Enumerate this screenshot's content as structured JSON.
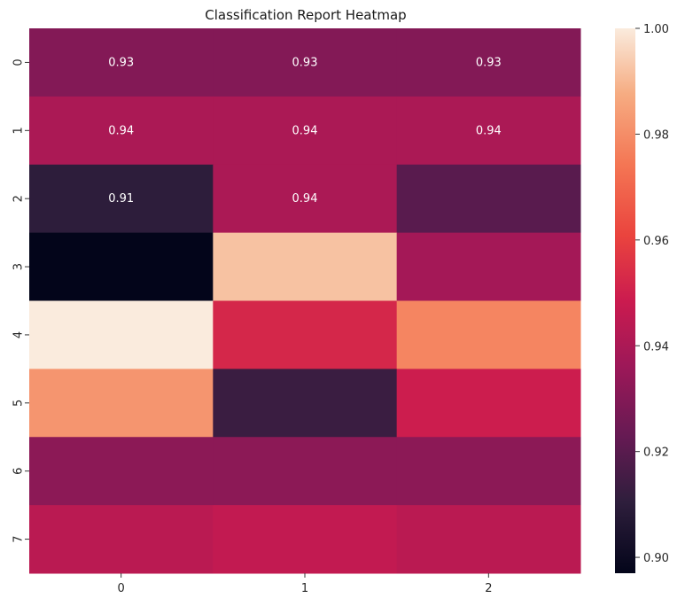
{
  "chart_data": {
    "type": "heatmap",
    "title": "Classification Report Heatmap",
    "xlabel": "",
    "ylabel": "",
    "x_categories": [
      "0",
      "1",
      "2"
    ],
    "y_categories": [
      "0",
      "1",
      "2",
      "3",
      "4",
      "5",
      "6",
      "7"
    ],
    "values": [
      [
        0.93,
        0.93,
        0.93
      ],
      [
        0.94,
        0.94,
        0.94
      ],
      [
        0.91,
        0.94,
        0.92
      ],
      [
        0.897,
        0.992,
        0.938
      ],
      [
        1.0,
        0.952,
        0.978
      ],
      [
        0.982,
        0.913,
        0.949
      ],
      [
        0.932,
        0.932,
        0.932
      ],
      [
        0.944,
        0.946,
        0.944
      ]
    ],
    "annotations": [
      [
        "0.93",
        "0.93",
        "0.93"
      ],
      [
        "0.94",
        "0.94",
        "0.94"
      ],
      [
        "0.91",
        "0.94",
        ""
      ],
      [
        "",
        "",
        ""
      ],
      [
        "",
        "",
        ""
      ],
      [
        "",
        "",
        ""
      ],
      [
        "",
        "",
        ""
      ],
      [
        "",
        "",
        ""
      ]
    ],
    "colormap": "rocket",
    "vmin": 0.897,
    "vmax": 1.0,
    "colorbar": {
      "ticks": [
        0.9,
        0.92,
        0.94,
        0.96,
        0.98,
        1.0
      ],
      "tick_labels": [
        "0.90",
        "0.92",
        "0.94",
        "0.96",
        "0.98",
        "1.00"
      ]
    },
    "grid": false,
    "legend": "colorbar-right"
  }
}
